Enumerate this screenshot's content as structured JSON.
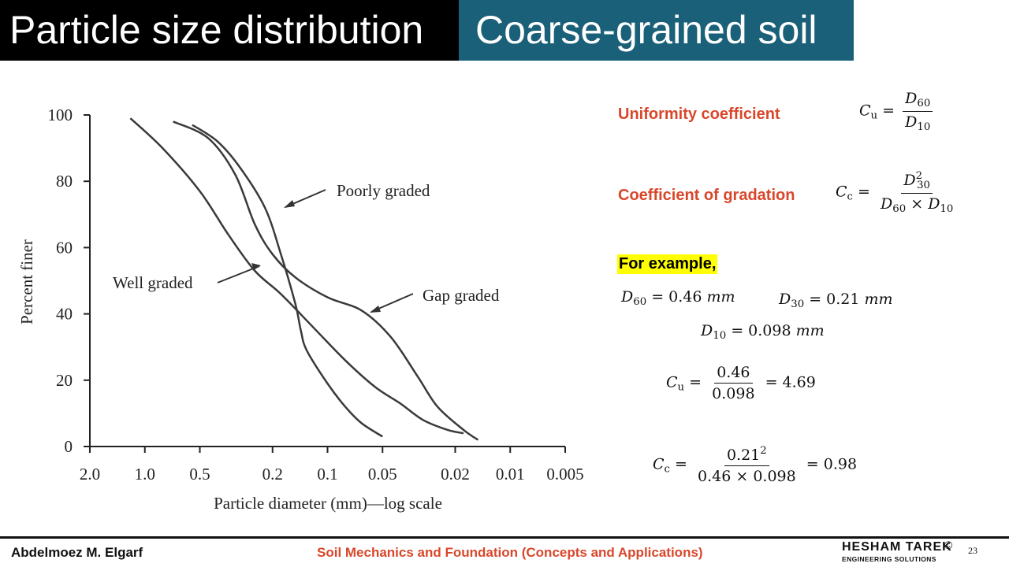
{
  "header": {
    "title_left": "Particle size distribution",
    "title_right": "Coarse-grained soil",
    "colors": {
      "left_bg": "#000000",
      "right_bg": "#1b6079"
    }
  },
  "chart_data": {
    "type": "line",
    "xlabel": "Particle diameter (mm)—log scale",
    "ylabel": "Percent finer",
    "x_scale": "log",
    "x_reversed": true,
    "xlim": [
      2.0,
      0.005
    ],
    "ylim": [
      0,
      100
    ],
    "x_ticks": [
      "2.0",
      "1.0",
      "0.5",
      "0.2",
      "0.1",
      "0.05",
      "0.02",
      "0.01",
      "0.005"
    ],
    "y_ticks": [
      "0",
      "20",
      "40",
      "60",
      "80",
      "100"
    ],
    "grid": false,
    "series": [
      {
        "name": "Well graded",
        "x": [
          1.2,
          0.8,
          0.5,
          0.35,
          0.25,
          0.18,
          0.12,
          0.08,
          0.055,
          0.04,
          0.03,
          0.022,
          0.018
        ],
        "y": [
          99,
          90,
          77,
          64,
          53,
          46,
          36,
          26,
          18,
          13,
          8,
          5,
          4
        ]
      },
      {
        "name": "Poorly graded",
        "x": [
          0.55,
          0.4,
          0.3,
          0.22,
          0.18,
          0.15,
          0.14,
          0.13,
          0.1,
          0.08,
          0.065,
          0.05
        ],
        "y": [
          97,
          92,
          84,
          72,
          58,
          43,
          35,
          29,
          19,
          12,
          7,
          3
        ]
      },
      {
        "name": "Gap graded",
        "x": [
          0.7,
          0.45,
          0.32,
          0.25,
          0.2,
          0.15,
          0.1,
          0.065,
          0.045,
          0.032,
          0.025,
          0.018,
          0.015
        ],
        "y": [
          98,
          93,
          82,
          67,
          58,
          51,
          45,
          41,
          33,
          21,
          12,
          5,
          2
        ]
      }
    ],
    "annotations": [
      "Poorly graded",
      "Well graded",
      "Gap graded"
    ]
  },
  "formulas": {
    "uniformity_label": "Uniformity coefficient",
    "gradation_label": "Coefficient of gradation",
    "example_label": "For example,",
    "cu_symbol": "C",
    "cu_sub": "u",
    "cc_symbol": "C",
    "cc_sub": "c",
    "eq": "=",
    "times": "×",
    "d": "D",
    "d60_sub": "60",
    "d10_sub": "10",
    "d30_sub": "30",
    "sq": "2",
    "d60_value": "= 0.46",
    "d30_value": "= 0.21",
    "d10_value": "= 0.098",
    "unit": "mm",
    "cu_num": "0.46",
    "cu_den": "0.098",
    "cu_result": "= 4.69",
    "cc_num": "0.21",
    "cc_den": "0.46 × 0.098",
    "cc_result": "= 0.98"
  },
  "footer": {
    "author": "Abdelmoez M. Elgarf",
    "course": "Soil Mechanics and Foundation (Concepts and Applications)",
    "logo_main": "HESHAM TAREK",
    "logo_sub": "ENGINEERING SOLUTIONS",
    "logo_mark": "©",
    "page": "23"
  }
}
